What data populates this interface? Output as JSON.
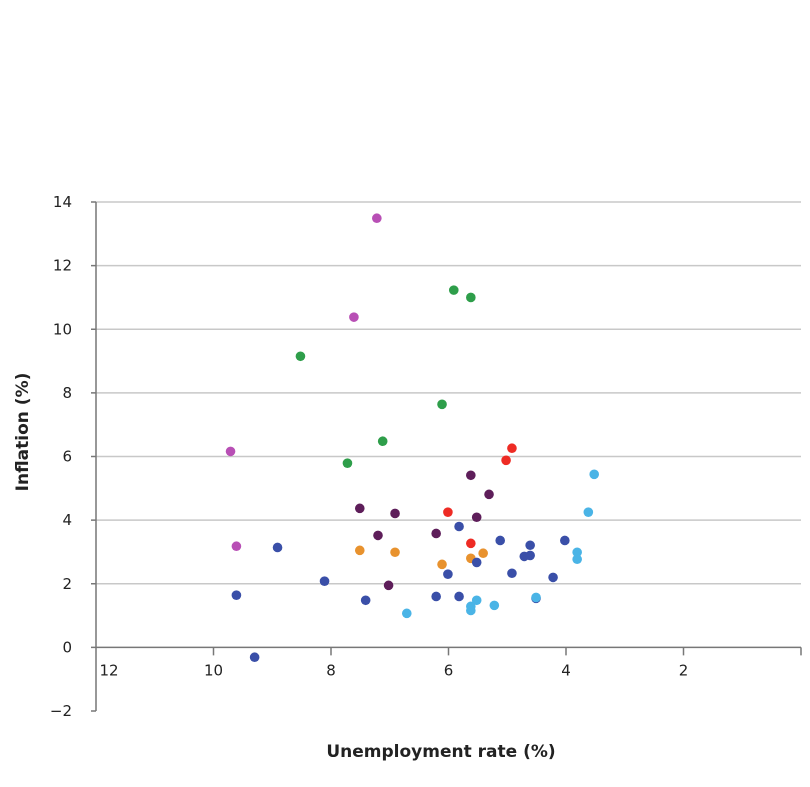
{
  "chart_data": {
    "type": "scatter",
    "title": "",
    "xlabel": "Unemployment rate (%)",
    "ylabel": "Inflation (%)",
    "xlim": [
      12,
      0
    ],
    "x_reversed": true,
    "ylim": [
      -2,
      14
    ],
    "xticks": [
      12,
      10,
      8,
      6,
      4,
      2
    ],
    "yticks": [
      14,
      12,
      10,
      8,
      6,
      4,
      2,
      0,
      -2
    ],
    "ytick_labels": [
      "14",
      "12",
      "10",
      "8",
      "6",
      "4",
      "2",
      "0",
      "−2"
    ],
    "grid": "horizontal",
    "legend": "none",
    "series": [
      {
        "name": "magenta",
        "color": "#b84fb5",
        "points": [
          [
            7.22,
            13.49
          ],
          [
            7.61,
            10.38
          ],
          [
            9.71,
            6.16
          ],
          [
            9.61,
            3.18
          ]
        ]
      },
      {
        "name": "green",
        "color": "#2e9e4a",
        "points": [
          [
            5.91,
            11.23
          ],
          [
            5.62,
            11.0
          ],
          [
            8.52,
            9.15
          ],
          [
            6.11,
            7.64
          ],
          [
            7.12,
            6.48
          ],
          [
            7.72,
            5.79
          ]
        ]
      },
      {
        "name": "red",
        "color": "#ee2b24",
        "points": [
          [
            4.92,
            6.26
          ],
          [
            5.02,
            5.88
          ],
          [
            6.01,
            4.25
          ],
          [
            5.62,
            3.27
          ]
        ]
      },
      {
        "name": "dark-purple",
        "color": "#5e1e5a",
        "points": [
          [
            5.62,
            5.41
          ],
          [
            5.31,
            4.81
          ],
          [
            7.51,
            4.37
          ],
          [
            6.91,
            4.21
          ],
          [
            5.52,
            4.09
          ],
          [
            7.2,
            3.52
          ],
          [
            6.21,
            3.58
          ],
          [
            7.02,
            1.95
          ]
        ]
      },
      {
        "name": "orange",
        "color": "#e8922e",
        "points": [
          [
            7.51,
            3.05
          ],
          [
            6.91,
            2.99
          ],
          [
            5.41,
            2.96
          ],
          [
            5.62,
            2.8
          ],
          [
            6.11,
            2.61
          ]
        ]
      },
      {
        "name": "blue",
        "color": "#3a4fa8",
        "points": [
          [
            5.82,
            3.8
          ],
          [
            5.12,
            3.36
          ],
          [
            4.02,
            3.36
          ],
          [
            4.61,
            3.21
          ],
          [
            8.91,
            3.14
          ],
          [
            4.71,
            2.86
          ],
          [
            4.61,
            2.89
          ],
          [
            5.52,
            2.67
          ],
          [
            6.01,
            2.3
          ],
          [
            4.92,
            2.33
          ],
          [
            4.22,
            2.2
          ],
          [
            8.11,
            2.08
          ],
          [
            9.61,
            1.64
          ],
          [
            6.21,
            1.6
          ],
          [
            5.82,
            1.6
          ],
          [
            7.41,
            1.48
          ],
          [
            4.51,
            1.54
          ],
          [
            9.3,
            -0.31
          ]
        ]
      },
      {
        "name": "light-blue",
        "color": "#4ab4e6",
        "points": [
          [
            3.52,
            5.44
          ],
          [
            3.62,
            4.25
          ],
          [
            3.81,
            2.99
          ],
          [
            3.81,
            2.77
          ],
          [
            4.51,
            1.57
          ],
          [
            5.52,
            1.48
          ],
          [
            5.62,
            1.29
          ],
          [
            5.62,
            1.16
          ],
          [
            5.22,
            1.32
          ],
          [
            6.71,
            1.07
          ]
        ]
      }
    ]
  }
}
